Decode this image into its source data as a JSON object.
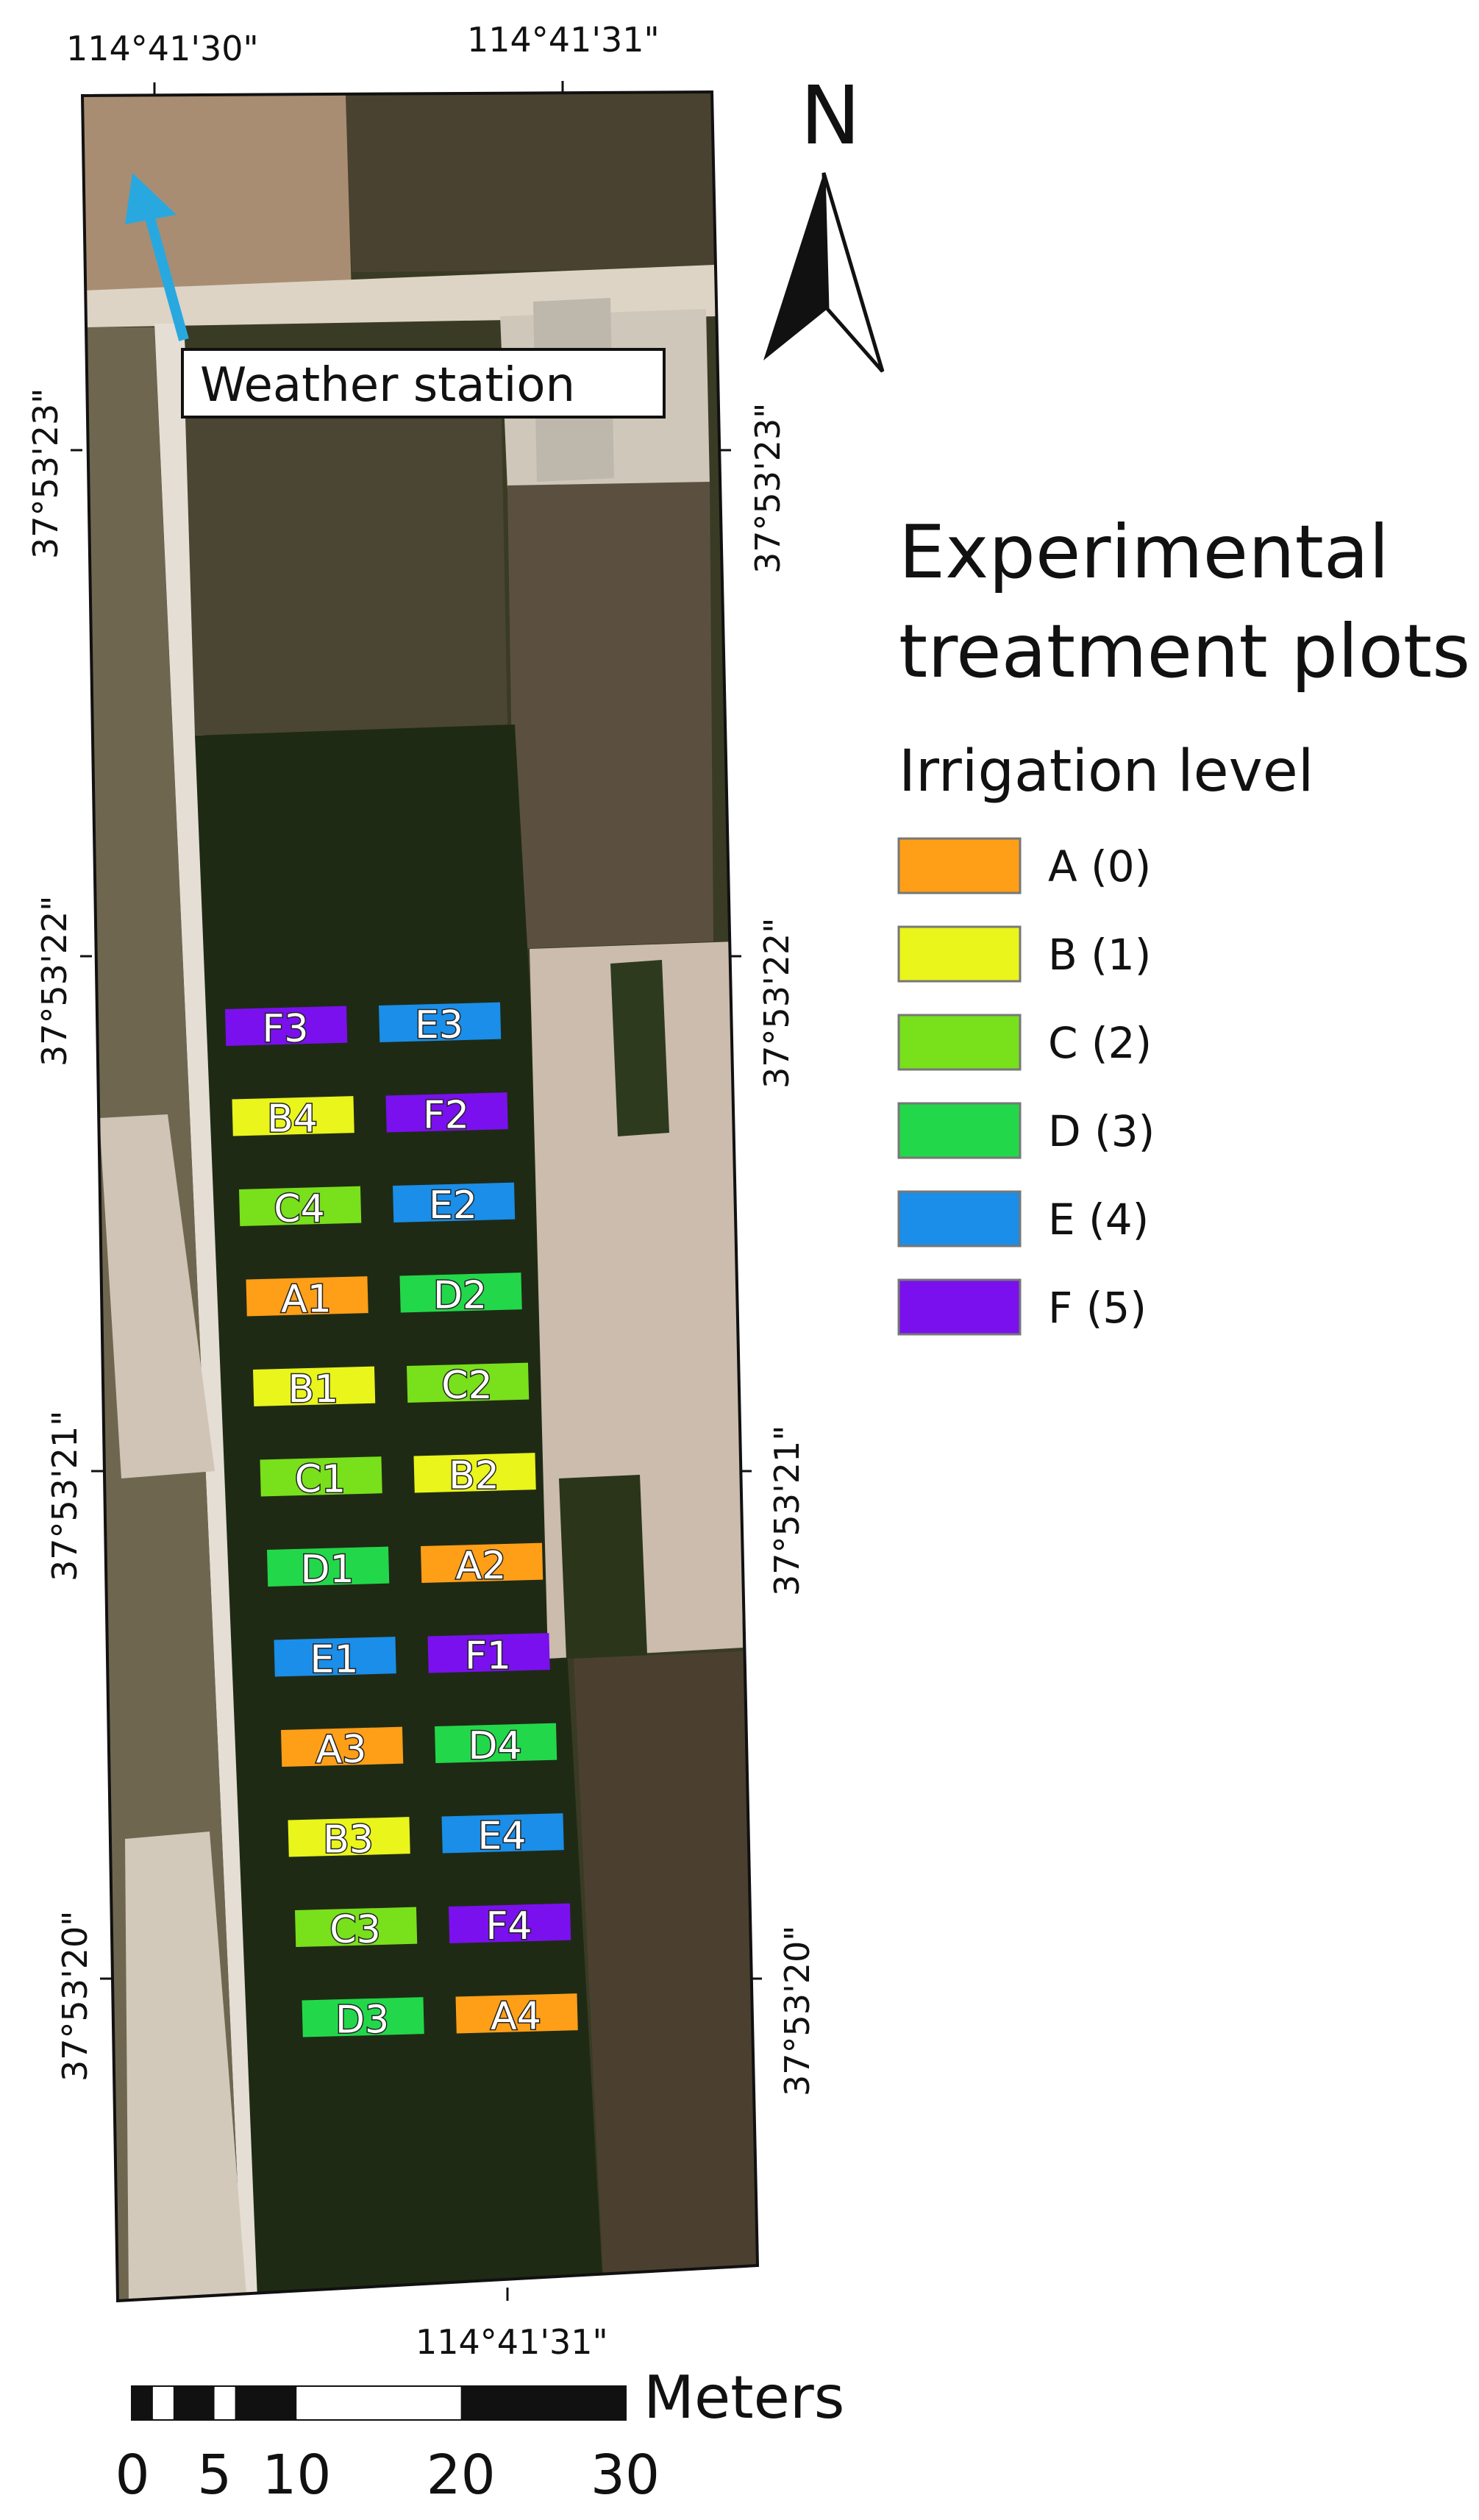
{
  "graticule": {
    "top": [
      "114°41'30\"",
      "114°41'31\""
    ],
    "bottom": [
      "114°41'31\""
    ],
    "left": [
      "37°53'23\"",
      "37°53'22\"",
      "37°53'21\"",
      "37°53'20\""
    ],
    "right": [
      "37°53'23\"",
      "37°53'22\"",
      "37°53'21\"",
      "37°53'20\""
    ]
  },
  "north_arrow": {
    "label": "N"
  },
  "weather_station": {
    "label": "Weather station",
    "arrow_color": "#29a8e0"
  },
  "legend": {
    "title_line1": "Experimental",
    "title_line2": "treatment plots",
    "subtitle": "Irrigation level",
    "items": [
      {
        "label": "A (0)",
        "color": "#ff9f17"
      },
      {
        "label": "B (1)",
        "color": "#e9f51b"
      },
      {
        "label": "C (2)",
        "color": "#79e01c"
      },
      {
        "label": "D (3)",
        "color": "#22d84a"
      },
      {
        "label": "E (4)",
        "color": "#1a8ee8"
      },
      {
        "label": "F (5)",
        "color": "#7a10ee"
      }
    ]
  },
  "plots": [
    {
      "label": "F3",
      "level": "F"
    },
    {
      "label": "E3",
      "level": "E"
    },
    {
      "label": "B4",
      "level": "B"
    },
    {
      "label": "F2",
      "level": "F"
    },
    {
      "label": "C4",
      "level": "C"
    },
    {
      "label": "E2",
      "level": "E"
    },
    {
      "label": "A1",
      "level": "A"
    },
    {
      "label": "D2",
      "level": "D"
    },
    {
      "label": "B1",
      "level": "B"
    },
    {
      "label": "C2",
      "level": "C"
    },
    {
      "label": "C1",
      "level": "C"
    },
    {
      "label": "B2",
      "level": "B"
    },
    {
      "label": "D1",
      "level": "D"
    },
    {
      "label": "A2",
      "level": "A"
    },
    {
      "label": "E1",
      "level": "E"
    },
    {
      "label": "F1",
      "level": "F"
    },
    {
      "label": "A3",
      "level": "A"
    },
    {
      "label": "D4",
      "level": "D"
    },
    {
      "label": "B3",
      "level": "B"
    },
    {
      "label": "E4",
      "level": "E"
    },
    {
      "label": "C3",
      "level": "C"
    },
    {
      "label": "F4",
      "level": "F"
    },
    {
      "label": "D3",
      "level": "D"
    },
    {
      "label": "A4",
      "level": "A"
    }
  ],
  "scale_bar": {
    "unit": "Meters",
    "ticks": [
      "0",
      "5",
      "10",
      "20",
      "30"
    ]
  }
}
